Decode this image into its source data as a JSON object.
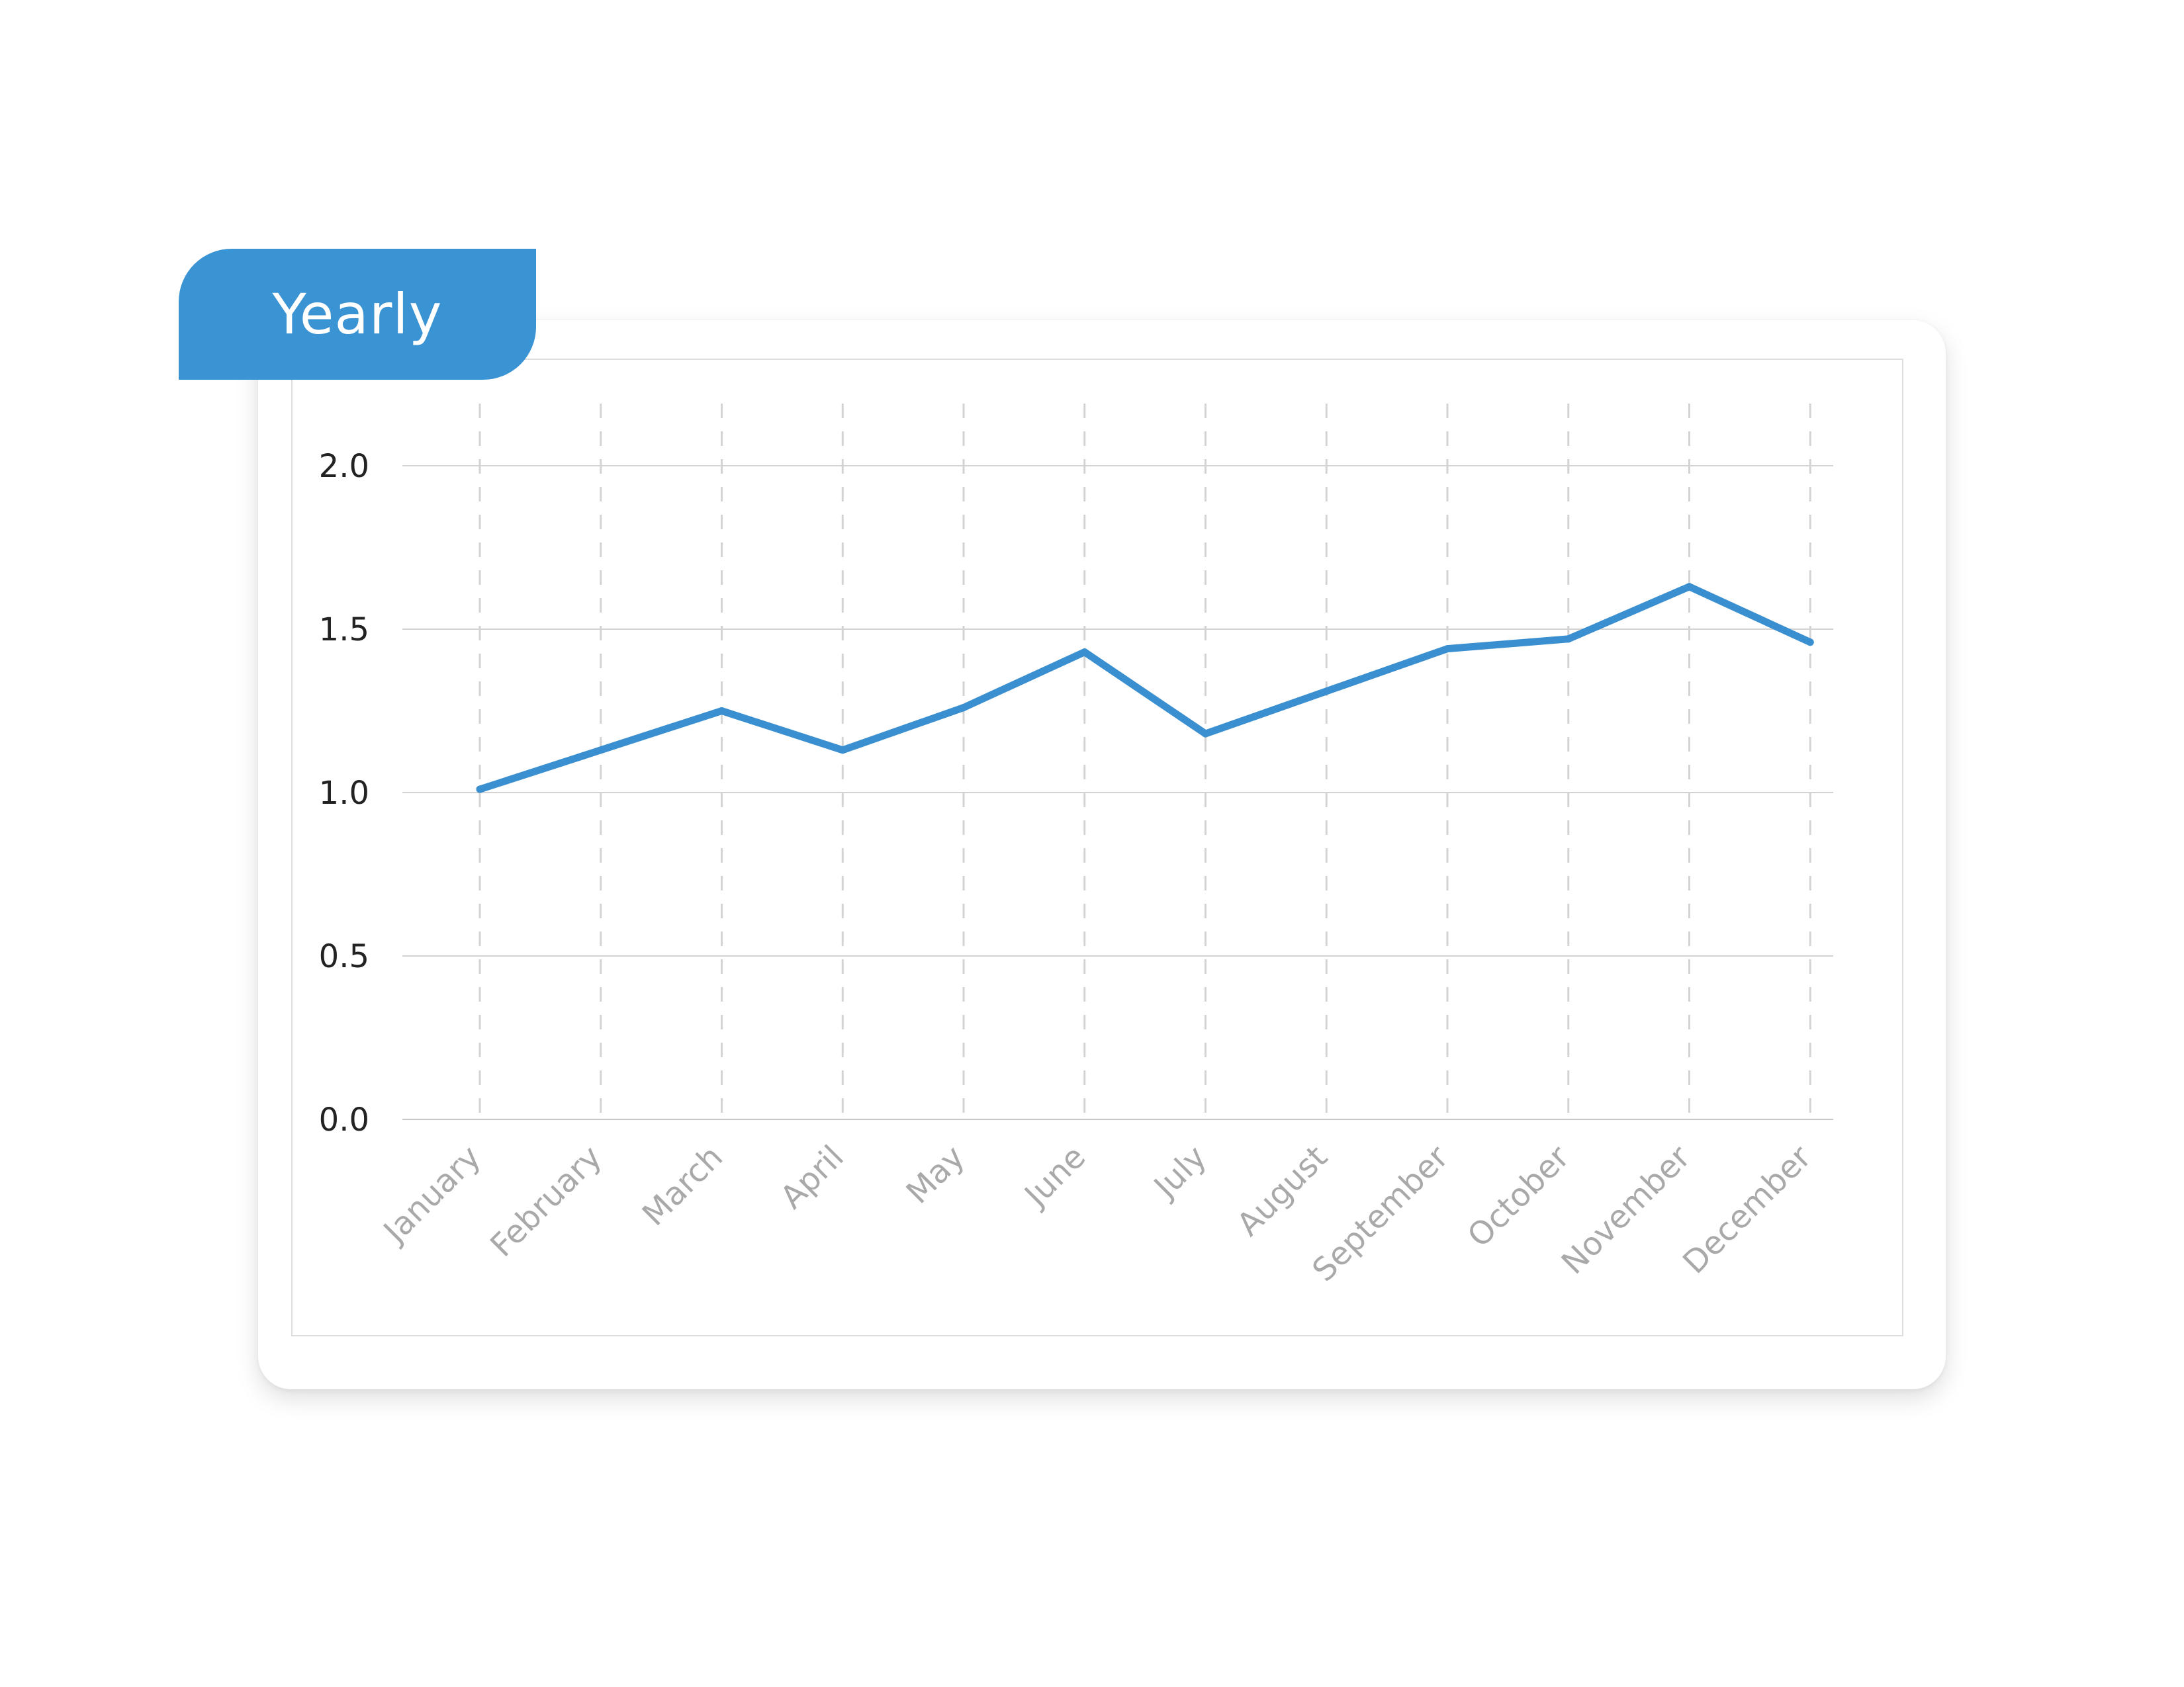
{
  "header": {
    "tab_label": "Yearly"
  },
  "colors": {
    "accent": "#3a93d3",
    "line": "#3a8fd0",
    "gridline": "#d3d3d3",
    "x_tick": "#a9a9a9",
    "y_tick": "#222222"
  },
  "chart_data": {
    "type": "line",
    "title": "",
    "xlabel": "",
    "ylabel": "",
    "categories": [
      "January",
      "February",
      "March",
      "April",
      "May",
      "June",
      "July",
      "August",
      "September",
      "October",
      "November",
      "December"
    ],
    "series": [
      {
        "values": [
          1.01,
          1.13,
          1.25,
          1.13,
          1.26,
          1.43,
          1.18,
          1.31,
          1.44,
          1.47,
          1.63,
          1.46
        ]
      }
    ],
    "ylim": [
      0,
      2.0
    ],
    "yticks": [
      "0.0",
      "0.5",
      "1.0",
      "1.5",
      "2.0"
    ],
    "ytick_values": [
      0,
      0.5,
      1.0,
      1.5,
      2.0
    ],
    "grid": {
      "horizontal": "solid",
      "vertical": "dashed"
    },
    "legend": "none"
  }
}
